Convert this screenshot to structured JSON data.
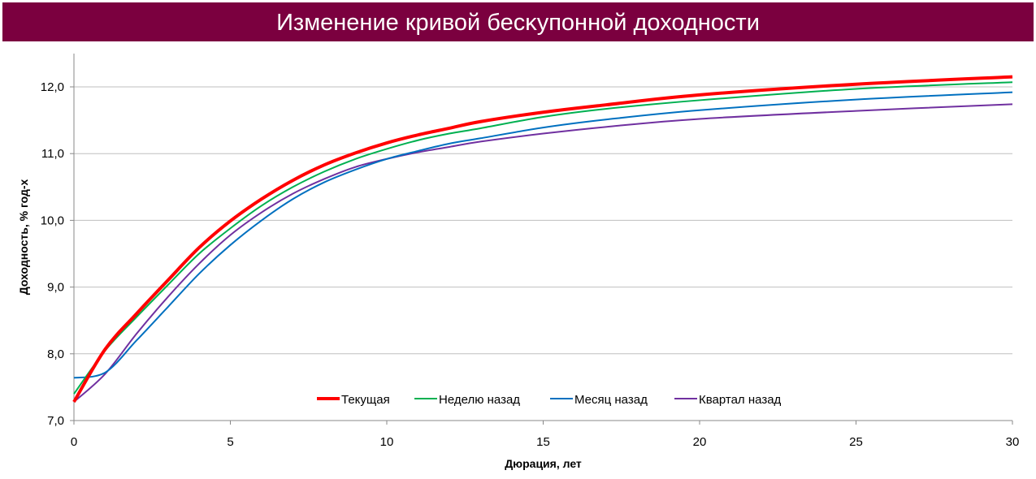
{
  "chart_data": {
    "type": "line",
    "title": "Изменение кривой бесκупонной доходности",
    "xlabel": "Дюрация, лет",
    "ylabel": "Доходность, % год-х",
    "xlim": [
      0,
      30
    ],
    "ylim": [
      7.0,
      12.5
    ],
    "x_ticks": [
      0,
      5,
      10,
      15,
      20,
      25,
      30
    ],
    "y_ticks": [
      "7,0",
      "8,0",
      "9,0",
      "10,0",
      "11,0",
      "12,0"
    ],
    "grid": "horizontal",
    "legend_position": "bottom-center",
    "x": [
      0,
      1,
      2,
      3,
      4,
      5,
      6,
      7,
      8,
      9,
      10,
      11,
      12,
      13,
      15,
      17,
      20,
      25,
      30
    ],
    "series": [
      {
        "name": "Текущая",
        "color": "#ff0000",
        "values": [
          7.28,
          8.07,
          8.6,
          9.1,
          9.59,
          9.99,
          10.32,
          10.6,
          10.83,
          11.01,
          11.16,
          11.28,
          11.38,
          11.48,
          11.62,
          11.73,
          11.88,
          12.04,
          12.15
        ]
      },
      {
        "name": "Неделю назад",
        "color": "#00b050",
        "values": [
          7.4,
          8.05,
          8.55,
          9.03,
          9.5,
          9.88,
          10.22,
          10.5,
          10.73,
          10.92,
          11.07,
          11.2,
          11.3,
          11.38,
          11.55,
          11.67,
          11.8,
          11.97,
          12.07
        ]
      },
      {
        "name": "Месяц назад",
        "color": "#0070c0",
        "values": [
          7.64,
          7.72,
          8.2,
          8.7,
          9.2,
          9.63,
          10.0,
          10.32,
          10.57,
          10.76,
          10.92,
          11.04,
          11.15,
          11.23,
          11.39,
          11.51,
          11.65,
          11.81,
          11.92
        ]
      },
      {
        "name": "Квартал назад",
        "color": "#7030a0",
        "values": [
          7.28,
          7.7,
          8.3,
          8.85,
          9.35,
          9.78,
          10.12,
          10.4,
          10.62,
          10.8,
          10.92,
          11.02,
          11.1,
          11.18,
          11.3,
          11.4,
          11.52,
          11.64,
          11.74
        ]
      }
    ]
  }
}
